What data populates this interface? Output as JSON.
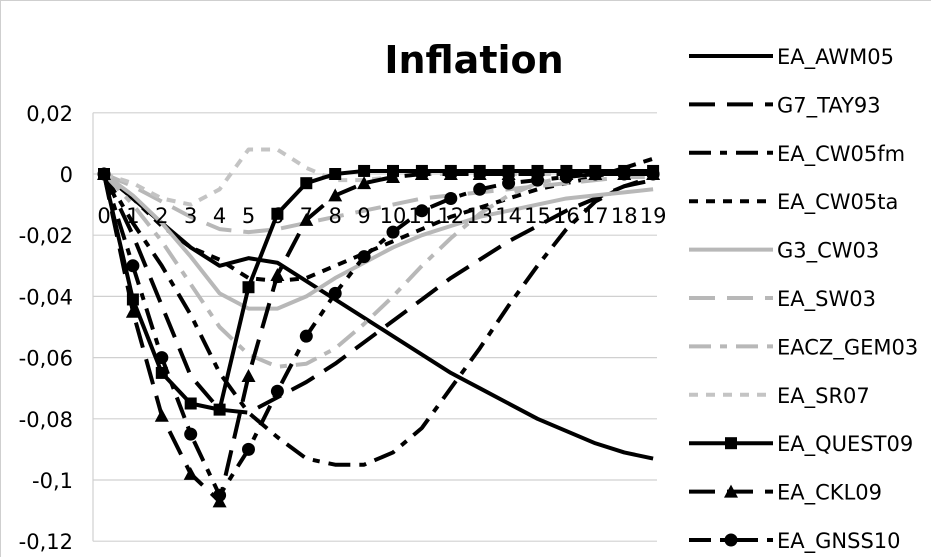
{
  "chart_data": {
    "type": "line",
    "title": "Inflation",
    "xlabel": "",
    "ylabel": "",
    "x": [
      0,
      1,
      2,
      3,
      4,
      5,
      6,
      7,
      8,
      9,
      10,
      11,
      12,
      13,
      14,
      15,
      16,
      17,
      18,
      19
    ],
    "x_tick_labels": [
      "0",
      "1",
      "2",
      "3",
      "4",
      "5",
      "6",
      "7",
      "8",
      "9",
      "10",
      "11",
      "12",
      "13",
      "14",
      "15",
      "16",
      "17",
      "18",
      "19"
    ],
    "ylim": [
      -0.12,
      0.02
    ],
    "y_ticks": [
      0.02,
      0,
      -0.02,
      -0.04,
      -0.06,
      -0.08,
      -0.1,
      -0.12
    ],
    "y_tick_labels": [
      "0,02",
      "0",
      "-0,02",
      "-0,04",
      "-0,06",
      "-0,08",
      "-0,1",
      "-0,12"
    ],
    "grid": "horizontal",
    "legend_position": "right",
    "series": [
      {
        "name": "EA_AWM05",
        "color": "#000000",
        "style": "solid",
        "marker": "none",
        "values": [
          0,
          -0.008,
          -0.016,
          -0.024,
          -0.03,
          -0.0275,
          -0.029,
          -0.035,
          -0.041,
          -0.047,
          -0.053,
          -0.059,
          -0.065,
          -0.07,
          -0.075,
          -0.08,
          -0.084,
          -0.088,
          -0.091,
          -0.093
        ]
      },
      {
        "name": "G7_TAY93",
        "color": "#000000",
        "style": "long-dash",
        "marker": "none",
        "values": [
          0,
          -0.02,
          -0.043,
          -0.066,
          -0.077,
          -0.078,
          -0.073,
          -0.068,
          -0.062,
          -0.055,
          -0.048,
          -0.041,
          -0.034,
          -0.028,
          -0.022,
          -0.017,
          -0.012,
          -0.008,
          -0.004,
          -0.001
        ]
      },
      {
        "name": "EA_CW05fm",
        "color": "#000000",
        "style": "dash-dot",
        "marker": "none",
        "values": [
          0,
          -0.016,
          -0.03,
          -0.046,
          -0.065,
          -0.078,
          -0.086,
          -0.093,
          -0.095,
          -0.095,
          -0.091,
          -0.083,
          -0.07,
          -0.057,
          -0.043,
          -0.03,
          -0.018,
          -0.009,
          -0.004,
          -0.002
        ]
      },
      {
        "name": "EA_CW05ta",
        "color": "#000000",
        "style": "short-dash",
        "marker": "none",
        "values": [
          0,
          -0.008,
          -0.017,
          -0.024,
          -0.028,
          -0.034,
          -0.035,
          -0.034,
          -0.03,
          -0.026,
          -0.022,
          -0.018,
          -0.014,
          -0.011,
          -0.008,
          -0.005,
          -0.003,
          -0.001,
          0.002,
          0.005
        ]
      },
      {
        "name": "G3_CW03",
        "color": "#b8b8b8",
        "style": "solid",
        "marker": "none",
        "values": [
          0,
          -0.007,
          -0.016,
          -0.027,
          -0.039,
          -0.044,
          -0.044,
          -0.04,
          -0.034,
          -0.029,
          -0.024,
          -0.02,
          -0.017,
          -0.014,
          -0.012,
          -0.01,
          -0.008,
          -0.007,
          -0.006,
          -0.005
        ]
      },
      {
        "name": "EA_SW03",
        "color": "#b8b8b8",
        "style": "long-dash",
        "marker": "none",
        "values": [
          0,
          -0.004,
          -0.009,
          -0.014,
          -0.018,
          -0.019,
          -0.018,
          -0.016,
          -0.014,
          -0.012,
          -0.01,
          -0.008,
          -0.007,
          -0.006,
          -0.005,
          -0.004,
          -0.003,
          -0.002,
          -0.001,
          -0.001
        ]
      },
      {
        "name": "EACZ_GEM03",
        "color": "#b8b8b8",
        "style": "dash-dot",
        "marker": "none",
        "values": [
          0,
          -0.01,
          -0.022,
          -0.036,
          -0.05,
          -0.059,
          -0.063,
          -0.062,
          -0.057,
          -0.049,
          -0.04,
          -0.03,
          -0.021,
          -0.013,
          -0.007,
          -0.003,
          -0.001,
          0.0,
          0.001,
          0.001
        ]
      },
      {
        "name": "EA_SR07",
        "color": "#c4c4c4",
        "style": "short-dash",
        "marker": "none",
        "values": [
          0,
          -0.003,
          -0.008,
          -0.01,
          -0.005,
          0.008,
          0.008,
          0.002,
          -0.002,
          -0.002,
          -0.001,
          0.0,
          0.0,
          0.0,
          0.0,
          0.0,
          0.0,
          0.0,
          0.0,
          0.0
        ]
      },
      {
        "name": "EA_QUEST09",
        "color": "#000000",
        "style": "solid",
        "marker": "square",
        "values": [
          0,
          -0.041,
          -0.065,
          -0.075,
          -0.077,
          -0.037,
          -0.013,
          -0.003,
          0.0,
          0.001,
          0.001,
          0.001,
          0.001,
          0.001,
          0.001,
          0.001,
          0.001,
          0.001,
          0.001,
          0.001
        ]
      },
      {
        "name": "EA_CKL09",
        "color": "#000000",
        "style": "long-dash",
        "marker": "triangle",
        "values": [
          0,
          -0.045,
          -0.079,
          -0.098,
          -0.107,
          -0.066,
          -0.033,
          -0.015,
          -0.007,
          -0.003,
          -0.001,
          0.0,
          0.0,
          0.0,
          0.0,
          0.0,
          0.0,
          0.0,
          0.0,
          0.0
        ]
      },
      {
        "name": "EA_GNSS10",
        "color": "#000000",
        "style": "dash-dot",
        "marker": "circle",
        "values": [
          0,
          -0.03,
          -0.06,
          -0.085,
          -0.105,
          -0.09,
          -0.071,
          -0.053,
          -0.039,
          -0.027,
          -0.019,
          -0.012,
          -0.008,
          -0.005,
          -0.003,
          -0.002,
          -0.001,
          0.0,
          0.0,
          0.0
        ]
      }
    ]
  }
}
